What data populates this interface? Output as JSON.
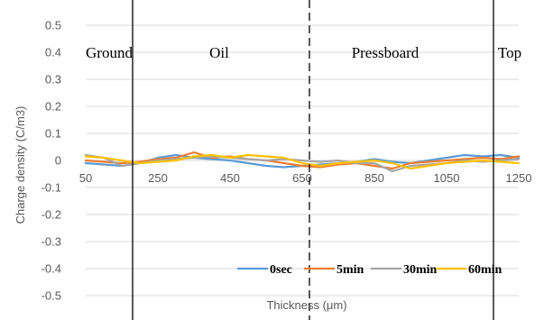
{
  "chart_data": {
    "type": "line",
    "xlabel": "Thickness  (μm)",
    "ylabel": "Charge density  (C/m3)",
    "xlim": [
      50,
      1250
    ],
    "ylim": [
      -0.5,
      0.5
    ],
    "x_ticks": [
      "50",
      "250",
      "450",
      "650",
      "850",
      "1050",
      "1250"
    ],
    "y_ticks": [
      "0.5",
      "0.4",
      "0.3",
      "0.2",
      "0.1",
      "0",
      "-0.1",
      "-0.2",
      "-0.3",
      "-0.4",
      "-0.5"
    ],
    "grid": "horizontal",
    "legend_position": "bottom-right",
    "regions": [
      {
        "label": "Ground",
        "x": 115
      },
      {
        "label": "Oil",
        "x": 420
      },
      {
        "label": "Pressboard",
        "x": 880
      },
      {
        "label": "Top",
        "x": 1225
      }
    ],
    "boundaries": [
      {
        "x": 180,
        "style": "solid"
      },
      {
        "x": 670,
        "style": "dashed"
      },
      {
        "x": 1180,
        "style": "solid"
      }
    ],
    "series": [
      {
        "name": "0sec",
        "color": "#5B9BD5",
        "x": [
          50,
          100,
          150,
          200,
          250,
          300,
          350,
          400,
          450,
          500,
          550,
          600,
          650,
          700,
          750,
          800,
          850,
          900,
          950,
          1000,
          1050,
          1100,
          1150,
          1200,
          1250
        ],
        "y": [
          -0.01,
          -0.015,
          -0.02,
          -0.01,
          0.01,
          0.02,
          0.01,
          0.005,
          0.0,
          -0.01,
          -0.02,
          -0.025,
          -0.02,
          -0.015,
          -0.01,
          -0.005,
          0.005,
          -0.005,
          -0.01,
          0.0,
          0.01,
          0.02,
          0.015,
          0.02,
          0.01
        ]
      },
      {
        "name": "5min",
        "color": "#ED7D31",
        "x": [
          50,
          100,
          150,
          200,
          250,
          300,
          350,
          400,
          450,
          500,
          550,
          600,
          650,
          700,
          750,
          800,
          850,
          900,
          950,
          1000,
          1050,
          1100,
          1150,
          1200,
          1250
        ],
        "y": [
          0.0,
          -0.005,
          -0.01,
          -0.005,
          0.005,
          0.01,
          0.03,
          0.01,
          0.015,
          0.005,
          0.0,
          -0.01,
          -0.02,
          -0.025,
          -0.015,
          -0.01,
          -0.02,
          -0.03,
          -0.01,
          -0.005,
          0.0,
          0.005,
          0.01,
          0.005,
          0.015
        ]
      },
      {
        "name": "30min",
        "color": "#A5A5A5",
        "x": [
          50,
          100,
          150,
          200,
          250,
          300,
          350,
          400,
          450,
          500,
          550,
          600,
          650,
          700,
          750,
          800,
          850,
          900,
          950,
          1000,
          1050,
          1100,
          1150,
          1200,
          1250
        ],
        "y": [
          0.02,
          0.01,
          -0.02,
          -0.01,
          0.0,
          0.005,
          0.01,
          0.015,
          0.01,
          0.005,
          0.0,
          0.005,
          0.0,
          -0.005,
          0.0,
          -0.01,
          -0.01,
          -0.04,
          -0.02,
          -0.015,
          -0.01,
          0.0,
          -0.005,
          0.0,
          0.005
        ]
      },
      {
        "name": "60min",
        "color": "#FFC000",
        "x": [
          50,
          100,
          150,
          200,
          250,
          300,
          350,
          400,
          450,
          500,
          550,
          600,
          650,
          700,
          750,
          800,
          850,
          900,
          950,
          1000,
          1050,
          1100,
          1150,
          1200,
          1250
        ],
        "y": [
          0.015,
          0.01,
          0.0,
          -0.01,
          -0.005,
          0.0,
          0.015,
          0.02,
          0.01,
          0.02,
          0.015,
          0.01,
          -0.01,
          -0.02,
          -0.01,
          -0.005,
          0.0,
          -0.01,
          -0.03,
          -0.02,
          -0.01,
          -0.005,
          0.0,
          -0.005,
          -0.01
        ]
      }
    ]
  }
}
